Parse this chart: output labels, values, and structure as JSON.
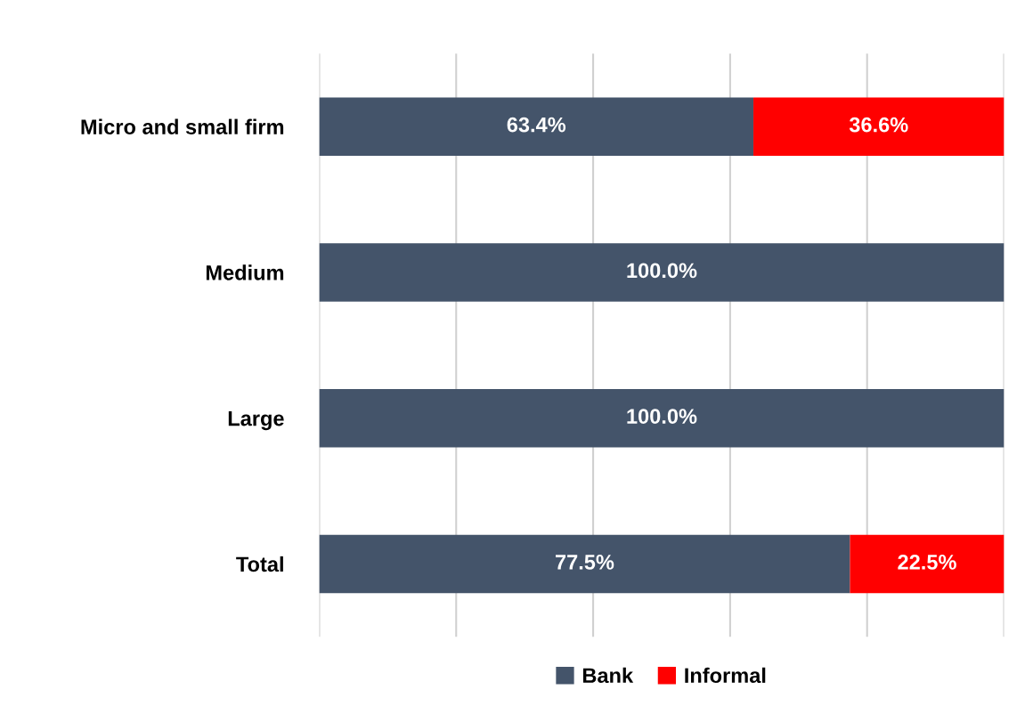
{
  "chart_data": {
    "type": "bar",
    "orientation": "horizontal",
    "stacked": true,
    "categories": [
      "Micro and small firm",
      "Medium",
      "Large",
      "Total"
    ],
    "series": [
      {
        "name": "Bank",
        "color": "#44546a",
        "values": [
          63.4,
          100.0,
          100.0,
          77.5
        ],
        "value_labels": [
          "63.4%",
          "100.0%",
          "100.0%",
          "77.5%"
        ]
      },
      {
        "name": "Informal",
        "color": "#ff0000",
        "values": [
          36.6,
          null,
          null,
          22.5
        ],
        "value_labels": [
          "36.6%",
          null,
          null,
          "22.5%"
        ]
      }
    ],
    "xlim": [
      0,
      100
    ],
    "xticks": [
      {
        "value": 0,
        "label": null
      },
      {
        "value": 20,
        "label": null
      },
      {
        "value": 40,
        "label": null
      },
      {
        "value": 60,
        "label": null
      },
      {
        "value": 80,
        "label": null
      },
      {
        "value": 100,
        "label": null
      }
    ],
    "tick_labels": "y",
    "grid": "x",
    "legend": "bottom"
  }
}
